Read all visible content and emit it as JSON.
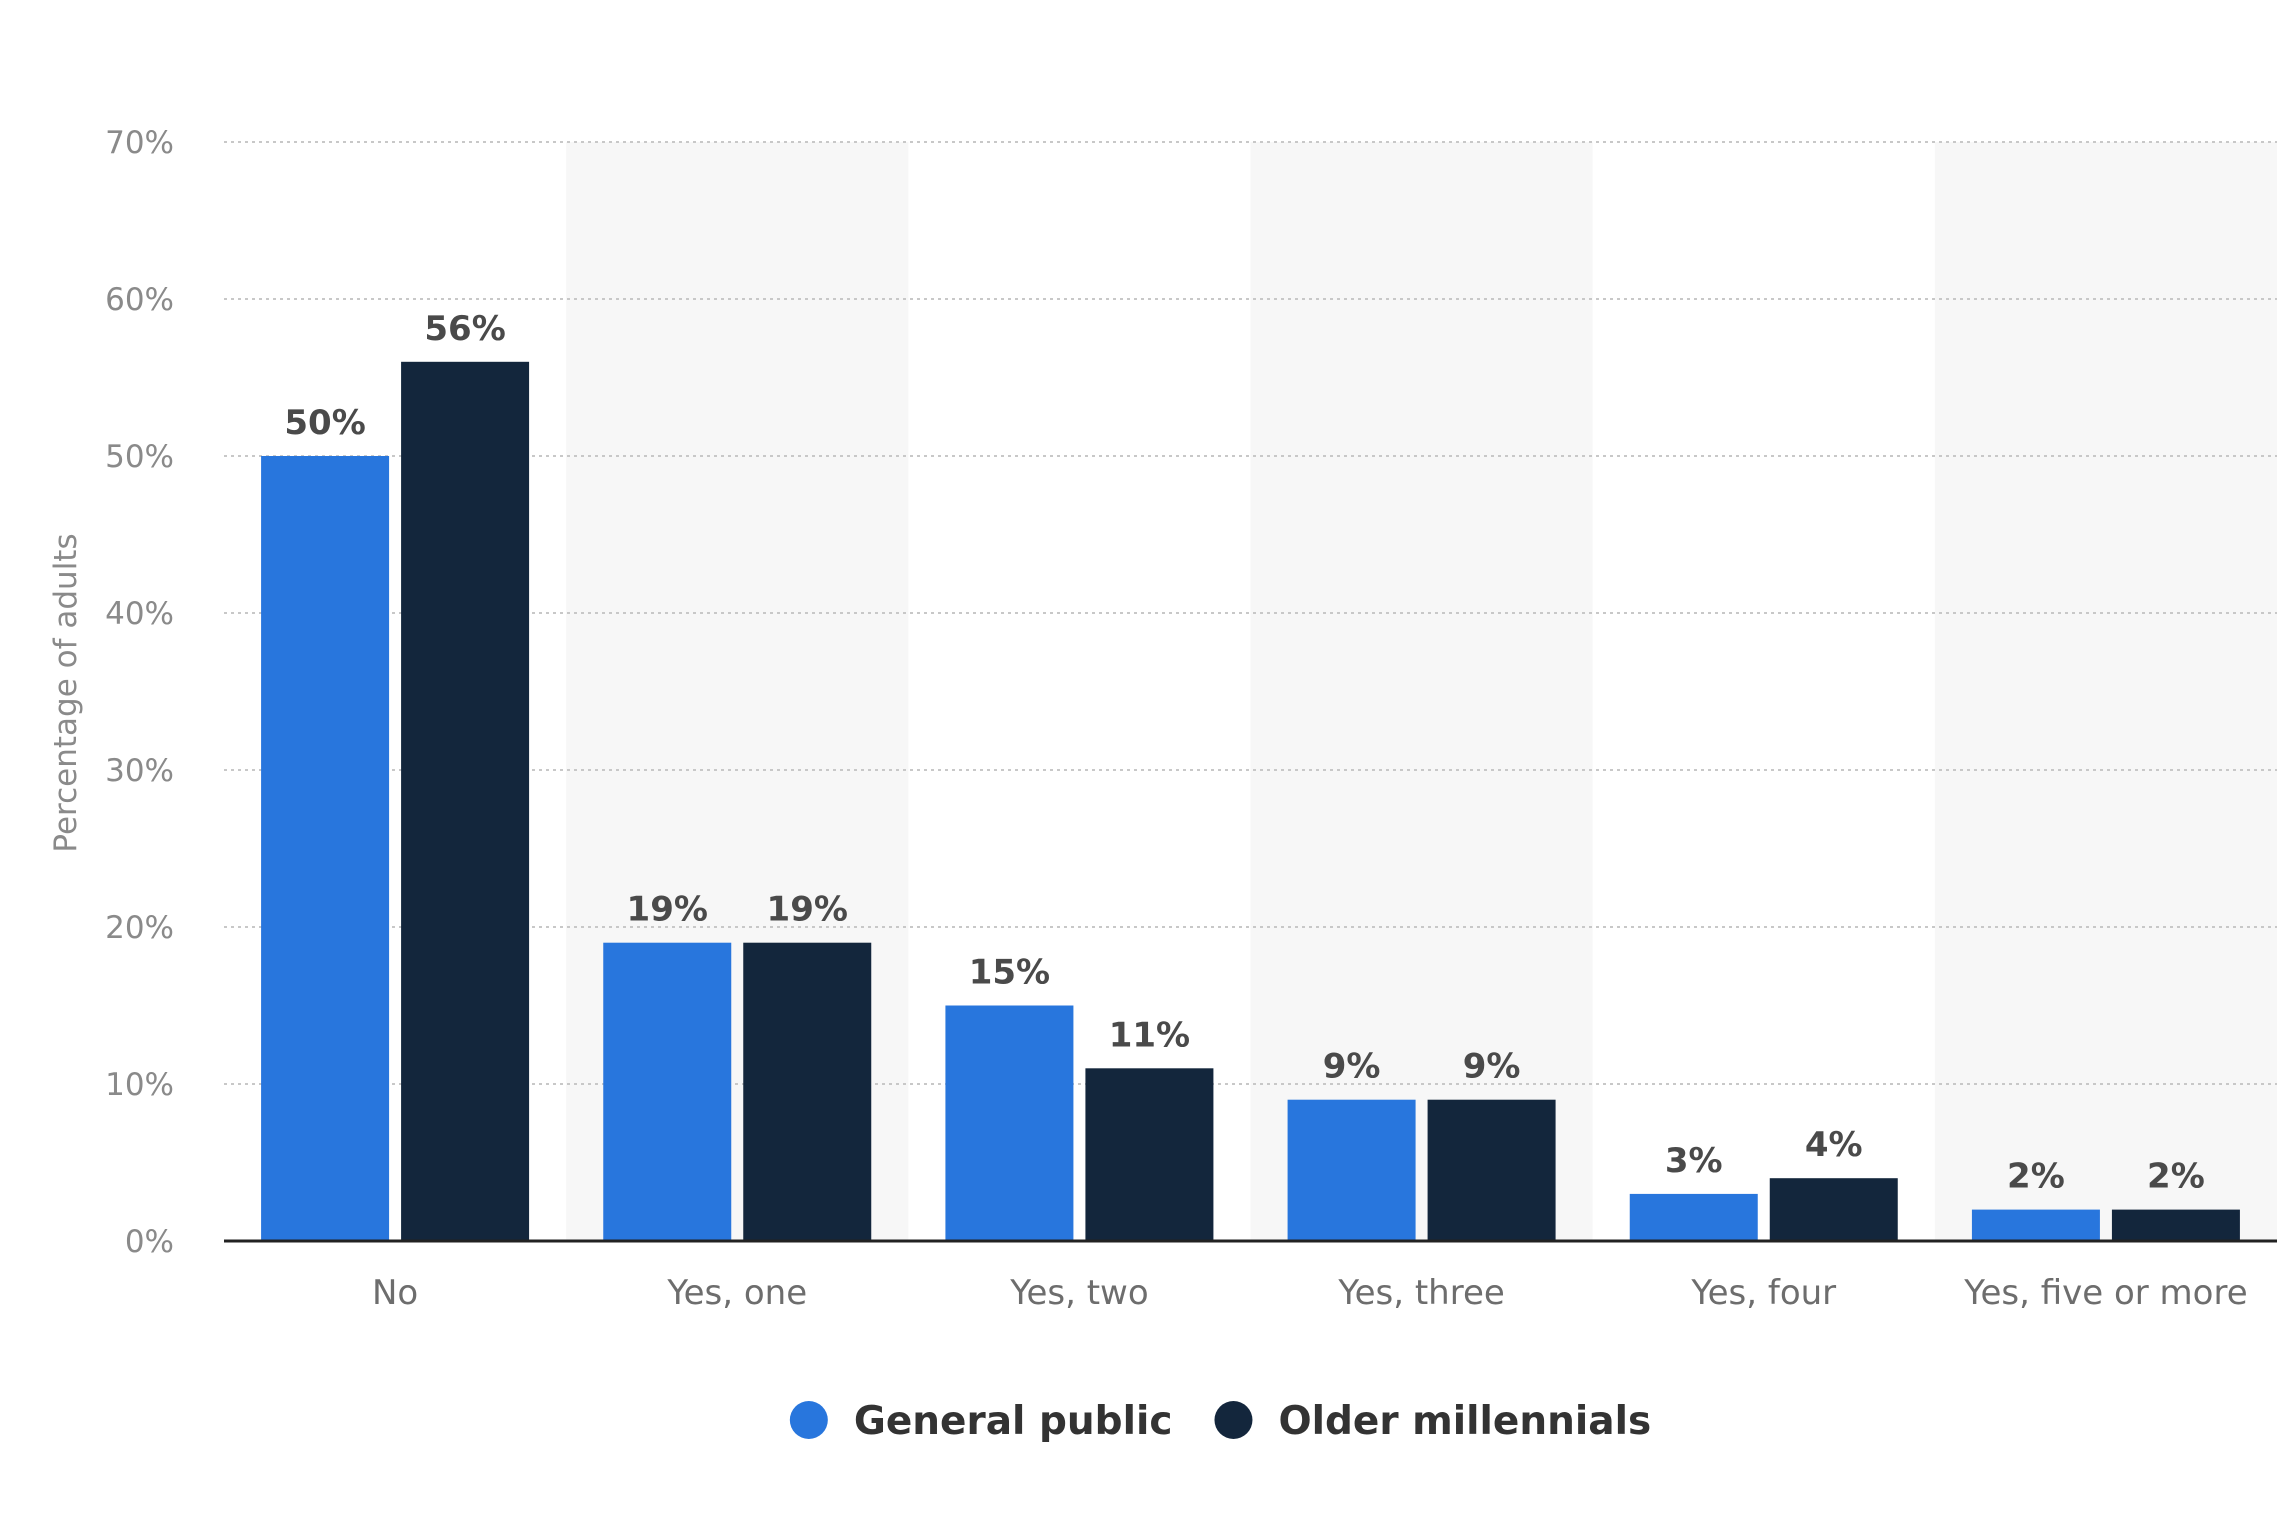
{
  "chart_data": {
    "type": "bar",
    "title": "",
    "xlabel": "",
    "ylabel": "Percentage of adults",
    "ylim": [
      0,
      70
    ],
    "yticks": [
      0,
      10,
      20,
      30,
      40,
      50,
      60,
      70
    ],
    "ytick_labels": [
      "0%",
      "10%",
      "20%",
      "30%",
      "40%",
      "50%",
      "60%",
      "70%"
    ],
    "grid": true,
    "legend_position": "bottom-center",
    "categories": [
      "No",
      "Yes, one",
      "Yes, two",
      "Yes, three",
      "Yes, four",
      "Yes, five or more"
    ],
    "series": [
      {
        "name": "General public",
        "color": "#2876dd",
        "values": [
          50,
          19,
          15,
          9,
          3,
          2
        ],
        "labels": [
          "50%",
          "19%",
          "15%",
          "9%",
          "3%",
          "2%"
        ]
      },
      {
        "name": "Older millennials",
        "color": "#13263c",
        "values": [
          56,
          19,
          11,
          9,
          4,
          2
        ],
        "labels": [
          "56%",
          "19%",
          "11%",
          "9%",
          "4%",
          "2%"
        ]
      }
    ]
  },
  "colors": {
    "band": "#f7f7f7",
    "grid": "#c8c8c8",
    "axis": "#222222"
  }
}
